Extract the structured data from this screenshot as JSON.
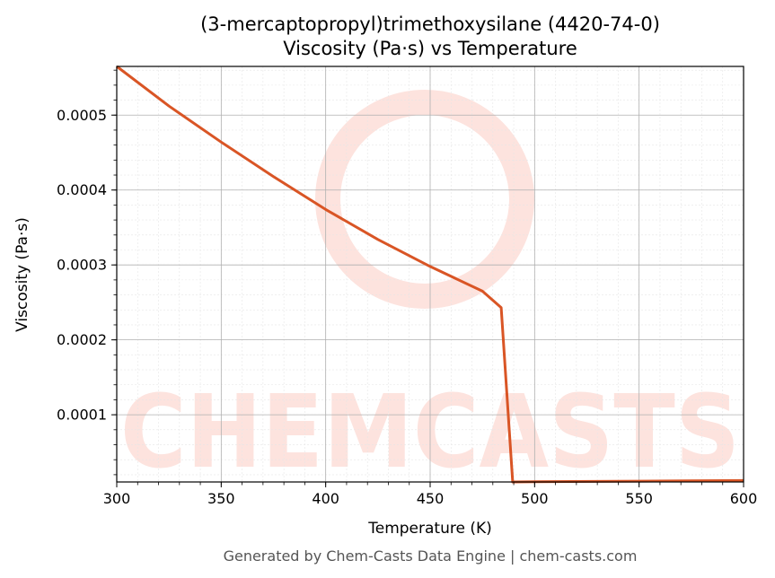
{
  "chart_data": {
    "type": "line",
    "title": "(3-mercaptopropyl)trimethoxysilane (4420-74-0)",
    "subtitle": "Viscosity (Pa·s) vs Temperature",
    "xlabel": "Temperature (K)",
    "ylabel": "Viscosity (Pa·s)",
    "xlim": [
      300,
      600
    ],
    "ylim": [
      1.03e-05,
      0.000565
    ],
    "x_ticks": [
      "300",
      "350",
      "400",
      "450",
      "500",
      "550",
      "600"
    ],
    "x_tick_values": [
      300,
      350,
      400,
      450,
      500,
      550,
      600
    ],
    "y_ticks": [
      "0.0001",
      "0.0002",
      "0.0003",
      "0.0004",
      "0.0005"
    ],
    "y_tick_values": [
      0.0001,
      0.0002,
      0.0003,
      0.0004,
      0.0005
    ],
    "grid": true,
    "line_color": "#d95525",
    "series": [
      {
        "x": [
          300,
          325,
          350,
          375,
          400,
          425,
          450,
          475,
          484,
          489.5,
          500,
          550,
          600
        ],
        "values": [
          0.000565,
          0.000512,
          0.000464,
          0.000418,
          0.000374,
          0.000334,
          0.000298,
          0.000265,
          0.000243,
          1.03e-05,
          1.06e-05,
          1.14e-05,
          1.22e-05
        ]
      }
    ]
  },
  "watermark": {
    "text": "CHEMCASTS",
    "color": "#fde3de"
  },
  "footer": "Generated by Chem-Casts Data Engine | chem-casts.com"
}
